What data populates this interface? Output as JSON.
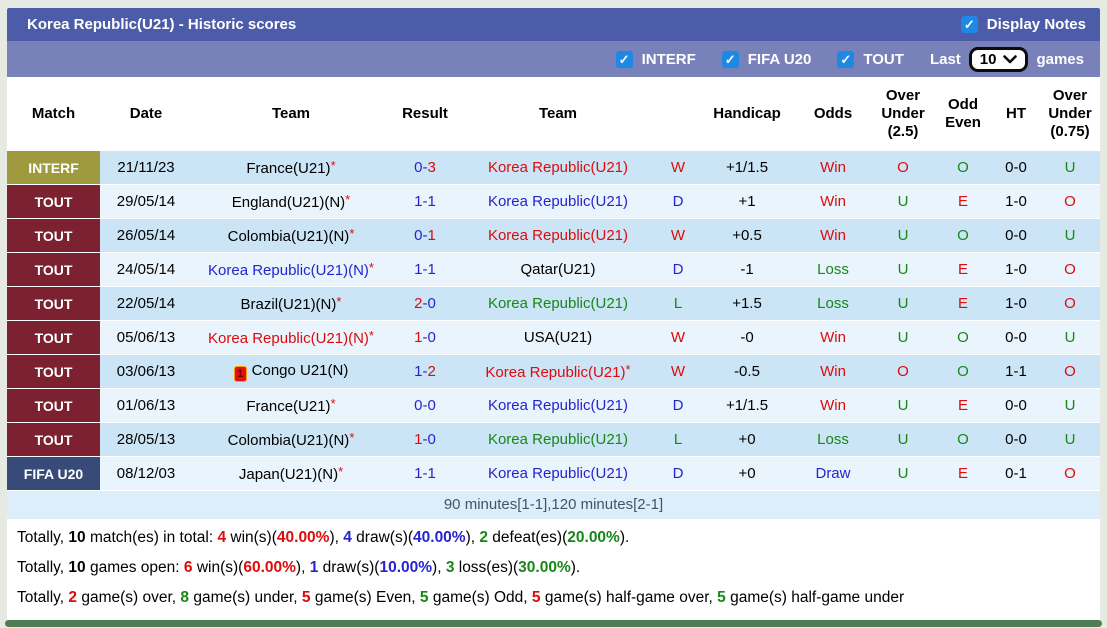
{
  "palette": {
    "red": "#dd0b0b",
    "blue": "#2525cd",
    "green": "#178717",
    "black": "#000000",
    "interf": "#a09a3e",
    "tout": "#7b2130",
    "fifau20": "#374a78"
  },
  "header": {
    "title": "Korea Republic(U21) - Historic scores",
    "display_notes": {
      "label": "Display Notes",
      "checked": true
    }
  },
  "filter_bar": {
    "competitions": [
      {
        "label": "INTERF",
        "checked": true
      },
      {
        "label": "FIFA U20",
        "checked": true
      },
      {
        "label": "TOUT",
        "checked": true
      }
    ],
    "last_label": "Last",
    "selected_count": "10",
    "games_label": "games"
  },
  "table": {
    "columns": [
      {
        "label": "Match"
      },
      {
        "label": "Date"
      },
      {
        "label": "Team"
      },
      {
        "label": "Result"
      },
      {
        "label": "Team"
      },
      {
        "label": ""
      },
      {
        "label": "Handicap"
      },
      {
        "label": "Odds"
      },
      {
        "label": "Over Under (2.5)"
      },
      {
        "label": "Odd Even"
      },
      {
        "label": "HT"
      },
      {
        "label": "Over Under (0.75)"
      }
    ],
    "rows": [
      {
        "match_type": "INTERF",
        "match_type_key": "interf",
        "date": "21/11/23",
        "team1": {
          "name": "France(U21)",
          "color": "black",
          "asterisk": true,
          "red_card": false
        },
        "result": {
          "home": "0",
          "away": "3",
          "home_color": "blue",
          "away_color": "red"
        },
        "team2": {
          "name": "Korea Republic(U21)",
          "color": "red",
          "asterisk": false
        },
        "wdl": {
          "text": "W",
          "color": "red"
        },
        "handicap": "+1/1.5",
        "odds": {
          "text": "Win",
          "color": "red"
        },
        "ou25": {
          "text": "O",
          "color": "red"
        },
        "odd_even": {
          "text": "O",
          "color": "green"
        },
        "ht": "0-0",
        "ou075": {
          "text": "U",
          "color": "green"
        }
      },
      {
        "match_type": "TOUT",
        "match_type_key": "tout",
        "date": "29/05/14",
        "team1": {
          "name": "England(U21)(N)",
          "color": "black",
          "asterisk": true,
          "red_card": false
        },
        "result": {
          "home": "1",
          "away": "1",
          "home_color": "blue",
          "away_color": "blue"
        },
        "team2": {
          "name": "Korea Republic(U21)",
          "color": "blue",
          "asterisk": false
        },
        "wdl": {
          "text": "D",
          "color": "blue"
        },
        "handicap": "+1",
        "odds": {
          "text": "Win",
          "color": "red"
        },
        "ou25": {
          "text": "U",
          "color": "green"
        },
        "odd_even": {
          "text": "E",
          "color": "red"
        },
        "ht": "1-0",
        "ou075": {
          "text": "O",
          "color": "red"
        }
      },
      {
        "match_type": "TOUT",
        "match_type_key": "tout",
        "date": "26/05/14",
        "team1": {
          "name": "Colombia(U21)(N)",
          "color": "black",
          "asterisk": true,
          "red_card": false
        },
        "result": {
          "home": "0",
          "away": "1",
          "home_color": "blue",
          "away_color": "red"
        },
        "team2": {
          "name": "Korea Republic(U21)",
          "color": "red",
          "asterisk": false
        },
        "wdl": {
          "text": "W",
          "color": "red"
        },
        "handicap": "+0.5",
        "odds": {
          "text": "Win",
          "color": "red"
        },
        "ou25": {
          "text": "U",
          "color": "green"
        },
        "odd_even": {
          "text": "O",
          "color": "green"
        },
        "ht": "0-0",
        "ou075": {
          "text": "U",
          "color": "green"
        }
      },
      {
        "match_type": "TOUT",
        "match_type_key": "tout",
        "date": "24/05/14",
        "team1": {
          "name": "Korea Republic(U21)(N)",
          "color": "blue",
          "asterisk": true,
          "red_card": false
        },
        "result": {
          "home": "1",
          "away": "1",
          "home_color": "blue",
          "away_color": "blue"
        },
        "team2": {
          "name": "Qatar(U21)",
          "color": "black",
          "asterisk": false
        },
        "wdl": {
          "text": "D",
          "color": "blue"
        },
        "handicap": "-1",
        "odds": {
          "text": "Loss",
          "color": "green"
        },
        "ou25": {
          "text": "U",
          "color": "green"
        },
        "odd_even": {
          "text": "E",
          "color": "red"
        },
        "ht": "1-0",
        "ou075": {
          "text": "O",
          "color": "red"
        }
      },
      {
        "match_type": "TOUT",
        "match_type_key": "tout",
        "date": "22/05/14",
        "team1": {
          "name": "Brazil(U21)(N)",
          "color": "black",
          "asterisk": true,
          "red_card": false
        },
        "result": {
          "home": "2",
          "away": "0",
          "home_color": "red",
          "away_color": "blue"
        },
        "team2": {
          "name": "Korea Republic(U21)",
          "color": "green",
          "asterisk": false
        },
        "wdl": {
          "text": "L",
          "color": "green"
        },
        "handicap": "+1.5",
        "odds": {
          "text": "Loss",
          "color": "green"
        },
        "ou25": {
          "text": "U",
          "color": "green"
        },
        "odd_even": {
          "text": "E",
          "color": "red"
        },
        "ht": "1-0",
        "ou075": {
          "text": "O",
          "color": "red"
        }
      },
      {
        "match_type": "TOUT",
        "match_type_key": "tout",
        "date": "05/06/13",
        "team1": {
          "name": "Korea Republic(U21)(N)",
          "color": "red",
          "asterisk": true,
          "red_card": false
        },
        "result": {
          "home": "1",
          "away": "0",
          "home_color": "red",
          "away_color": "blue"
        },
        "team2": {
          "name": "USA(U21)",
          "color": "black",
          "asterisk": false
        },
        "wdl": {
          "text": "W",
          "color": "red"
        },
        "handicap": "-0",
        "odds": {
          "text": "Win",
          "color": "red"
        },
        "ou25": {
          "text": "U",
          "color": "green"
        },
        "odd_even": {
          "text": "O",
          "color": "green"
        },
        "ht": "0-0",
        "ou075": {
          "text": "U",
          "color": "green"
        }
      },
      {
        "match_type": "TOUT",
        "match_type_key": "tout",
        "date": "03/06/13",
        "team1": {
          "name": "Congo U21(N)",
          "color": "black",
          "asterisk": false,
          "red_card": true,
          "red_card_count": "1"
        },
        "result": {
          "home": "1",
          "away": "2",
          "home_color": "blue",
          "away_color": "red"
        },
        "team2": {
          "name": "Korea Republic(U21)",
          "color": "red",
          "asterisk": true
        },
        "wdl": {
          "text": "W",
          "color": "red"
        },
        "handicap": "-0.5",
        "odds": {
          "text": "Win",
          "color": "red"
        },
        "ou25": {
          "text": "O",
          "color": "red"
        },
        "odd_even": {
          "text": "O",
          "color": "green"
        },
        "ht": "1-1",
        "ou075": {
          "text": "O",
          "color": "red"
        }
      },
      {
        "match_type": "TOUT",
        "match_type_key": "tout",
        "date": "01/06/13",
        "team1": {
          "name": "France(U21)",
          "color": "black",
          "asterisk": true,
          "red_card": false
        },
        "result": {
          "home": "0",
          "away": "0",
          "home_color": "blue",
          "away_color": "blue"
        },
        "team2": {
          "name": "Korea Republic(U21)",
          "color": "blue",
          "asterisk": false
        },
        "wdl": {
          "text": "D",
          "color": "blue"
        },
        "handicap": "+1/1.5",
        "odds": {
          "text": "Win",
          "color": "red"
        },
        "ou25": {
          "text": "U",
          "color": "green"
        },
        "odd_even": {
          "text": "E",
          "color": "red"
        },
        "ht": "0-0",
        "ou075": {
          "text": "U",
          "color": "green"
        }
      },
      {
        "match_type": "TOUT",
        "match_type_key": "tout",
        "date": "28/05/13",
        "team1": {
          "name": "Colombia(U21)(N)",
          "color": "black",
          "asterisk": true,
          "red_card": false
        },
        "result": {
          "home": "1",
          "away": "0",
          "home_color": "red",
          "away_color": "blue"
        },
        "team2": {
          "name": "Korea Republic(U21)",
          "color": "green",
          "asterisk": false
        },
        "wdl": {
          "text": "L",
          "color": "green"
        },
        "handicap": "+0",
        "odds": {
          "text": "Loss",
          "color": "green"
        },
        "ou25": {
          "text": "U",
          "color": "green"
        },
        "odd_even": {
          "text": "O",
          "color": "green"
        },
        "ht": "0-0",
        "ou075": {
          "text": "U",
          "color": "green"
        }
      },
      {
        "match_type": "FIFA U20",
        "match_type_key": "fifau20",
        "date": "08/12/03",
        "team1": {
          "name": "Japan(U21)(N)",
          "color": "black",
          "asterisk": true,
          "red_card": false
        },
        "result": {
          "home": "1",
          "away": "1",
          "home_color": "blue",
          "away_color": "blue"
        },
        "team2": {
          "name": "Korea Republic(U21)",
          "color": "blue",
          "asterisk": false
        },
        "wdl": {
          "text": "D",
          "color": "blue"
        },
        "handicap": "+0",
        "odds": {
          "text": "Draw",
          "color": "blue"
        },
        "ou25": {
          "text": "U",
          "color": "green"
        },
        "odd_even": {
          "text": "E",
          "color": "red"
        },
        "ht": "0-1",
        "ou075": {
          "text": "O",
          "color": "red"
        }
      }
    ]
  },
  "note": "90 minutes[1-1],120 minutes[2-1]",
  "totals": [
    {
      "segments": [
        {
          "t": "Totally, "
        },
        {
          "t": "10",
          "b": true
        },
        {
          "t": " match(es) in total: "
        },
        {
          "t": "4",
          "c": "red",
          "b": true
        },
        {
          "t": " win(s)("
        },
        {
          "t": "40.00%",
          "c": "red",
          "b": true
        },
        {
          "t": "), "
        },
        {
          "t": "4",
          "c": "blue",
          "b": true
        },
        {
          "t": " draw(s)("
        },
        {
          "t": "40.00%",
          "c": "blue",
          "b": true
        },
        {
          "t": "), "
        },
        {
          "t": "2",
          "c": "green",
          "b": true
        },
        {
          "t": " defeat(es)("
        },
        {
          "t": "20.00%",
          "c": "green",
          "b": true
        },
        {
          "t": ")."
        }
      ]
    },
    {
      "segments": [
        {
          "t": "Totally, "
        },
        {
          "t": "10",
          "b": true
        },
        {
          "t": " games open: "
        },
        {
          "t": "6",
          "c": "red",
          "b": true
        },
        {
          "t": " win(s)("
        },
        {
          "t": "60.00%",
          "c": "red",
          "b": true
        },
        {
          "t": "), "
        },
        {
          "t": "1",
          "c": "blue",
          "b": true
        },
        {
          "t": " draw(s)("
        },
        {
          "t": "10.00%",
          "c": "blue",
          "b": true
        },
        {
          "t": "), "
        },
        {
          "t": "3",
          "c": "green",
          "b": true
        },
        {
          "t": " loss(es)("
        },
        {
          "t": "30.00%",
          "c": "green",
          "b": true
        },
        {
          "t": ")."
        }
      ]
    },
    {
      "segments": [
        {
          "t": "Totally, "
        },
        {
          "t": "2",
          "c": "red",
          "b": true
        },
        {
          "t": " game(s) over, "
        },
        {
          "t": "8",
          "c": "green",
          "b": true
        },
        {
          "t": " game(s) under, "
        },
        {
          "t": "5",
          "c": "red",
          "b": true
        },
        {
          "t": " game(s) Even, "
        },
        {
          "t": "5",
          "c": "green",
          "b": true
        },
        {
          "t": " game(s) Odd, "
        },
        {
          "t": "5",
          "c": "red",
          "b": true
        },
        {
          "t": " game(s) half-game over, "
        },
        {
          "t": "5",
          "c": "green",
          "b": true
        },
        {
          "t": " game(s) half-game under"
        }
      ]
    }
  ]
}
